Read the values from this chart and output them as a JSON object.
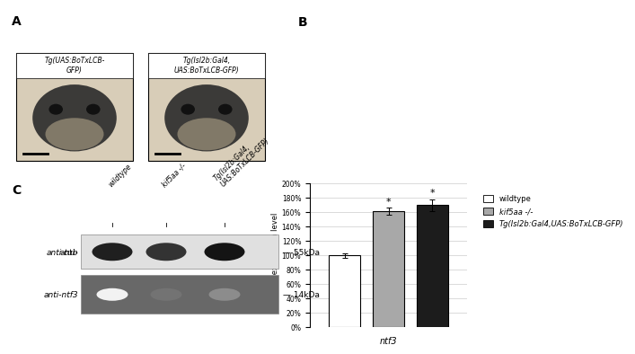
{
  "panel_B": {
    "bar_values": [
      100,
      161,
      170
    ],
    "bar_errors": [
      3,
      5,
      8
    ],
    "bar_colors": [
      "#ffffff",
      "#a8a8a8",
      "#1c1c1c"
    ],
    "bar_edge_colors": [
      "#000000",
      "#000000",
      "#000000"
    ],
    "ylim": [
      0,
      200
    ],
    "yticks": [
      0,
      20,
      40,
      60,
      80,
      100,
      120,
      140,
      160,
      180,
      200
    ],
    "ytick_labels": [
      "0%",
      "20%",
      "40%",
      "60%",
      "80%",
      "100%",
      "120%",
      "140%",
      "160%",
      "180%",
      "200%"
    ],
    "ylabel": "mRNA expression level",
    "xlabel": "ntf3",
    "legend_labels": [
      "wildtype",
      "kif5aa -/-",
      "Tg(Isl2b:Gal4,UAS:BoTxLCB-GFP)"
    ],
    "legend_colors": [
      "#ffffff",
      "#a8a8a8",
      "#1c1c1c"
    ],
    "asterisk_bars": [
      1,
      2
    ],
    "bar_width": 0.18
  },
  "panel_A": {
    "label": "A",
    "img_label_left": "Tg(UAS:BoTxLCB-\nGFP)",
    "img_label_right": "Tg(Isl2b:Gal4,\nUAS:BoTxLCB-GFP)"
  },
  "panel_C": {
    "label": "C",
    "lane_labels": [
      "wildtype",
      "kif5aa -/-",
      "Tg(Isl2b:Gal4,\nUAS:BoTxLCB-GFP)"
    ],
    "row_labels": [
      "anti-tub",
      "anti-ntf3"
    ],
    "size_labels": [
      "55kDa",
      "14kDa"
    ],
    "tub_band_intensities": [
      0.88,
      0.8,
      0.92
    ],
    "ntf3_band_intensities": [
      0.05,
      0.55,
      0.45
    ],
    "tub_bg": "#e8e8e8",
    "ntf3_bg": "#707070"
  }
}
